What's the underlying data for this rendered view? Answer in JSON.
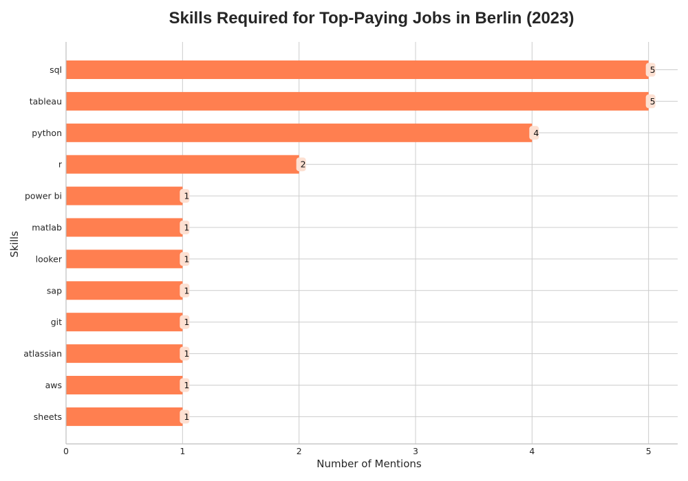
{
  "chart_data": {
    "type": "bar",
    "orientation": "horizontal",
    "title": "Skills Required for Top-Paying Jobs in Berlin (2023)",
    "xlabel": "Number of Mentions",
    "ylabel": "Skills",
    "categories": [
      "sql",
      "tableau",
      "python",
      "r",
      "power bi",
      "matlab",
      "looker",
      "sap",
      "git",
      "atlassian",
      "aws",
      "sheets"
    ],
    "values": [
      5,
      5,
      4,
      2,
      1,
      1,
      1,
      1,
      1,
      1,
      1,
      1
    ],
    "xlim": [
      0,
      5.25
    ],
    "xticks": [
      0,
      1,
      2,
      3,
      4,
      5
    ],
    "grid": true,
    "bar_color": "#ff7f50",
    "label_box_color": "#fde0d2"
  }
}
